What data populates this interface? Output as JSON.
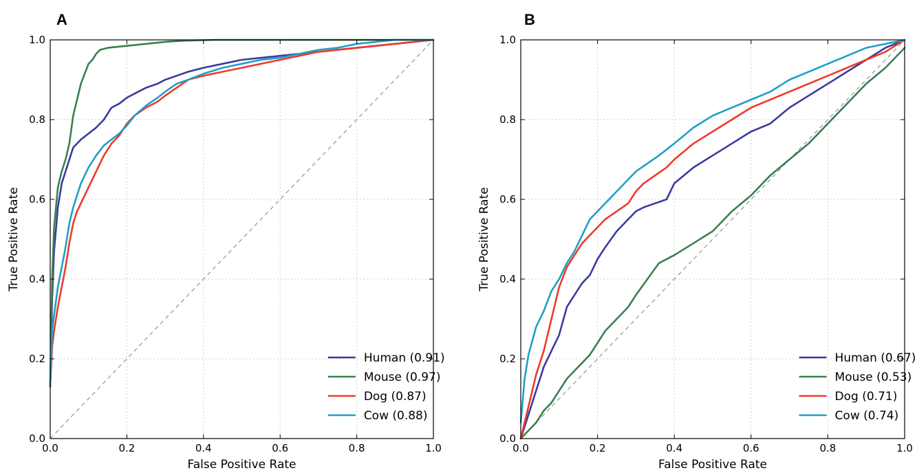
{
  "chart_data": [
    {
      "panel_label": "A",
      "type": "line",
      "xlabel": "False Positive Rate",
      "ylabel": "True Positive Rate",
      "xlim": [
        0.0,
        1.0
      ],
      "ylim": [
        0.0,
        1.0
      ],
      "xticks": [
        "0.0",
        "0.2",
        "0.4",
        "0.6",
        "0.8",
        "1.0"
      ],
      "yticks": [
        "0.0",
        "0.2",
        "0.4",
        "0.6",
        "0.8",
        "1.0"
      ],
      "grid": true,
      "legend_position": "lower-right",
      "diagonal_reference": true,
      "series": [
        {
          "name": "Human (0.91)",
          "color": "#3a3aa0",
          "x": [
            0,
            0.005,
            0.01,
            0.02,
            0.03,
            0.04,
            0.05,
            0.06,
            0.08,
            0.1,
            0.12,
            0.14,
            0.16,
            0.18,
            0.2,
            0.22,
            0.25,
            0.28,
            0.3,
            0.33,
            0.36,
            0.4,
            0.45,
            0.5,
            0.55,
            0.6,
            0.65,
            0.7,
            0.8,
            0.9,
            1.0
          ],
          "y": [
            0.13,
            0.35,
            0.47,
            0.58,
            0.64,
            0.67,
            0.7,
            0.73,
            0.75,
            0.765,
            0.78,
            0.8,
            0.83,
            0.84,
            0.855,
            0.865,
            0.88,
            0.89,
            0.9,
            0.91,
            0.92,
            0.93,
            0.94,
            0.95,
            0.955,
            0.96,
            0.965,
            0.97,
            0.98,
            0.99,
            1.0
          ]
        },
        {
          "name": "Mouse (0.97)",
          "color": "#3a7f4f",
          "x": [
            0,
            0.005,
            0.01,
            0.02,
            0.03,
            0.04,
            0.05,
            0.06,
            0.07,
            0.08,
            0.09,
            0.1,
            0.11,
            0.12,
            0.13,
            0.15,
            0.2,
            0.25,
            0.3,
            0.35,
            0.43,
            0.5,
            0.6,
            0.7,
            0.8,
            0.9,
            1.0
          ],
          "y": [
            0.13,
            0.4,
            0.53,
            0.63,
            0.67,
            0.7,
            0.74,
            0.81,
            0.85,
            0.89,
            0.915,
            0.94,
            0.95,
            0.965,
            0.975,
            0.98,
            0.985,
            0.99,
            0.995,
            0.998,
            1.0,
            1.0,
            1.0,
            1.0,
            1.0,
            1.0,
            1.0
          ]
        },
        {
          "name": "Dog (0.87)",
          "color": "#ee3a2a",
          "x": [
            0,
            0.005,
            0.01,
            0.02,
            0.03,
            0.04,
            0.05,
            0.06,
            0.07,
            0.08,
            0.1,
            0.12,
            0.14,
            0.16,
            0.18,
            0.2,
            0.22,
            0.25,
            0.28,
            0.3,
            0.33,
            0.36,
            0.4,
            0.45,
            0.5,
            0.55,
            0.6,
            0.65,
            0.7,
            0.75,
            0.8,
            0.9,
            1.0
          ],
          "y": [
            0.13,
            0.23,
            0.27,
            0.33,
            0.38,
            0.43,
            0.49,
            0.54,
            0.57,
            0.59,
            0.63,
            0.67,
            0.71,
            0.74,
            0.76,
            0.79,
            0.81,
            0.83,
            0.845,
            0.86,
            0.88,
            0.9,
            0.91,
            0.92,
            0.93,
            0.94,
            0.95,
            0.96,
            0.97,
            0.975,
            0.98,
            0.99,
            1.0
          ]
        },
        {
          "name": "Cow (0.88)",
          "color": "#1e9fc8",
          "x": [
            0,
            0.005,
            0.01,
            0.02,
            0.03,
            0.04,
            0.05,
            0.06,
            0.07,
            0.08,
            0.1,
            0.12,
            0.14,
            0.16,
            0.18,
            0.2,
            0.22,
            0.25,
            0.28,
            0.3,
            0.33,
            0.36,
            0.4,
            0.45,
            0.5,
            0.55,
            0.6,
            0.65,
            0.7,
            0.75,
            0.8,
            0.9,
            1.0
          ],
          "y": [
            0.13,
            0.27,
            0.31,
            0.38,
            0.43,
            0.48,
            0.54,
            0.58,
            0.61,
            0.64,
            0.68,
            0.71,
            0.735,
            0.75,
            0.765,
            0.785,
            0.81,
            0.835,
            0.855,
            0.87,
            0.89,
            0.9,
            0.915,
            0.93,
            0.94,
            0.95,
            0.955,
            0.965,
            0.975,
            0.98,
            0.99,
            1.0,
            1.0
          ]
        }
      ]
    },
    {
      "panel_label": "B",
      "type": "line",
      "xlabel": "False Positive Rate",
      "ylabel": "True Positive Rate",
      "xlim": [
        0.0,
        1.0
      ],
      "ylim": [
        0.0,
        1.0
      ],
      "xticks": [
        "0.0",
        "0.2",
        "0.4",
        "0.6",
        "0.8",
        "1.0"
      ],
      "yticks": [
        "0.0",
        "0.2",
        "0.4",
        "0.6",
        "0.8",
        "1.0"
      ],
      "grid": true,
      "legend_position": "lower-right",
      "diagonal_reference": true,
      "series": [
        {
          "name": "Human (0.67)",
          "color": "#3a3aa0",
          "x": [
            0,
            0.02,
            0.04,
            0.06,
            0.08,
            0.1,
            0.12,
            0.14,
            0.16,
            0.18,
            0.2,
            0.22,
            0.25,
            0.28,
            0.3,
            0.32,
            0.35,
            0.38,
            0.4,
            0.45,
            0.5,
            0.55,
            0.6,
            0.65,
            0.7,
            0.75,
            0.8,
            0.85,
            0.9,
            0.95,
            1.0
          ],
          "y": [
            0.0,
            0.06,
            0.12,
            0.18,
            0.22,
            0.26,
            0.33,
            0.36,
            0.39,
            0.41,
            0.45,
            0.48,
            0.52,
            0.55,
            0.57,
            0.58,
            0.59,
            0.6,
            0.64,
            0.68,
            0.71,
            0.74,
            0.77,
            0.79,
            0.83,
            0.86,
            0.89,
            0.92,
            0.95,
            0.98,
            1.0
          ]
        },
        {
          "name": "Mouse (0.53)",
          "color": "#3a7f4f",
          "x": [
            0,
            0.02,
            0.04,
            0.06,
            0.08,
            0.1,
            0.12,
            0.14,
            0.16,
            0.18,
            0.2,
            0.22,
            0.25,
            0.28,
            0.3,
            0.33,
            0.36,
            0.4,
            0.45,
            0.5,
            0.55,
            0.6,
            0.65,
            0.7,
            0.75,
            0.8,
            0.85,
            0.9,
            0.95,
            1.0
          ],
          "y": [
            0.0,
            0.02,
            0.04,
            0.07,
            0.09,
            0.12,
            0.15,
            0.17,
            0.19,
            0.21,
            0.24,
            0.27,
            0.3,
            0.33,
            0.36,
            0.4,
            0.44,
            0.46,
            0.49,
            0.52,
            0.57,
            0.61,
            0.66,
            0.7,
            0.74,
            0.79,
            0.84,
            0.89,
            0.93,
            0.98
          ]
        },
        {
          "name": "Dog (0.71)",
          "color": "#ee3a2a",
          "x": [
            0,
            0.02,
            0.04,
            0.06,
            0.08,
            0.1,
            0.12,
            0.14,
            0.16,
            0.18,
            0.2,
            0.22,
            0.25,
            0.28,
            0.3,
            0.32,
            0.35,
            0.38,
            0.4,
            0.45,
            0.5,
            0.55,
            0.6,
            0.65,
            0.7,
            0.75,
            0.8,
            0.85,
            0.9,
            0.95,
            1.0
          ],
          "y": [
            0.0,
            0.08,
            0.16,
            0.22,
            0.3,
            0.38,
            0.43,
            0.46,
            0.49,
            0.51,
            0.53,
            0.55,
            0.57,
            0.59,
            0.62,
            0.64,
            0.66,
            0.68,
            0.7,
            0.74,
            0.77,
            0.8,
            0.83,
            0.85,
            0.87,
            0.89,
            0.91,
            0.93,
            0.95,
            0.97,
            1.0
          ]
        },
        {
          "name": "Cow (0.74)",
          "color": "#1e9fc8",
          "x": [
            0,
            0.01,
            0.02,
            0.04,
            0.06,
            0.08,
            0.1,
            0.12,
            0.14,
            0.16,
            0.18,
            0.2,
            0.22,
            0.25,
            0.28,
            0.3,
            0.33,
            0.36,
            0.4,
            0.45,
            0.5,
            0.55,
            0.6,
            0.65,
            0.7,
            0.75,
            0.8,
            0.85,
            0.9,
            0.95,
            1.0
          ],
          "y": [
            0.04,
            0.15,
            0.21,
            0.28,
            0.32,
            0.37,
            0.4,
            0.44,
            0.47,
            0.51,
            0.55,
            0.57,
            0.59,
            0.62,
            0.65,
            0.67,
            0.69,
            0.71,
            0.74,
            0.78,
            0.81,
            0.83,
            0.85,
            0.87,
            0.9,
            0.92,
            0.94,
            0.96,
            0.98,
            0.99,
            1.0
          ]
        }
      ]
    }
  ]
}
